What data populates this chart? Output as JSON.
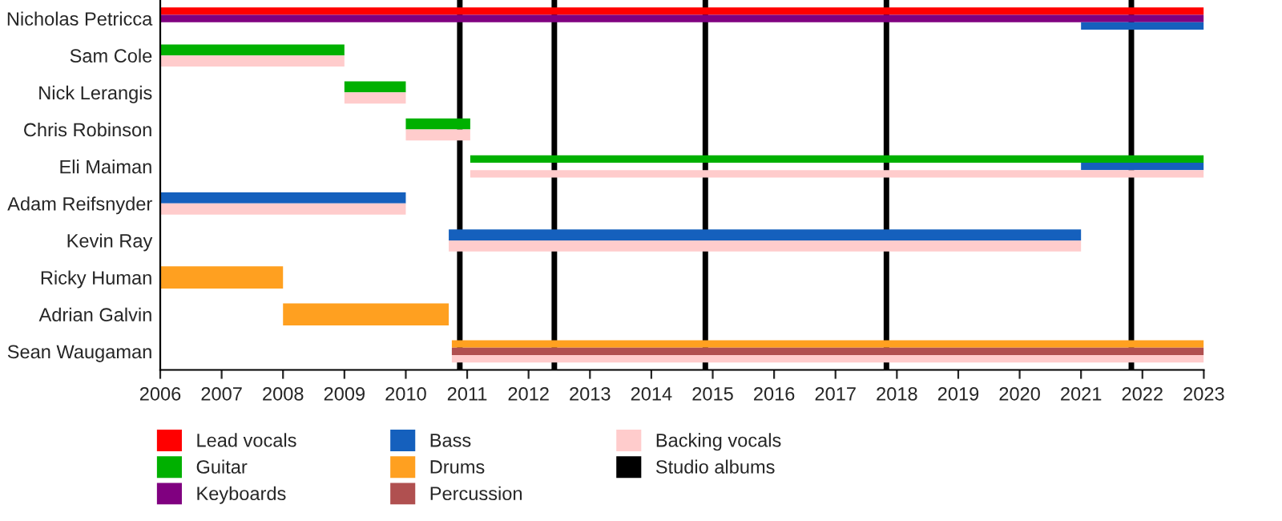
{
  "chart_data": {
    "type": "bar",
    "orientation": "horizontal",
    "categories": [
      "Nicholas Petricca",
      "Sam Cole",
      "Nick Lerangis",
      "Chris Robinson",
      "Eli Maiman",
      "Adam Reifsnyder",
      "Kevin Ray",
      "Ricky Human",
      "Adrian Galvin",
      "Sean Waugaman"
    ],
    "series": [
      {
        "name": "Lead vocals",
        "color": "#ff0000",
        "base": [
          2006,
          null,
          null,
          null,
          null,
          null,
          null,
          null,
          null,
          null
        ],
        "values": [
          17,
          null,
          null,
          null,
          null,
          null,
          null,
          null,
          null,
          null
        ]
      },
      {
        "name": "Guitar",
        "color": "#00b000",
        "base": [
          null,
          2006,
          2009,
          2010,
          2011.05,
          null,
          null,
          null,
          null,
          null
        ],
        "values": [
          null,
          3,
          1,
          1.05,
          11.95,
          null,
          null,
          null,
          null,
          null
        ]
      },
      {
        "name": "Keyboards",
        "color": "#800080",
        "base": [
          2006,
          null,
          null,
          null,
          null,
          null,
          null,
          null,
          null,
          null
        ],
        "values": [
          17,
          null,
          null,
          null,
          null,
          null,
          null,
          null,
          null,
          null
        ]
      },
      {
        "name": "Bass",
        "color": "#1560bd",
        "base": [
          2021,
          null,
          null,
          null,
          2021,
          2006,
          2010.7,
          null,
          null,
          null
        ],
        "values": [
          2,
          null,
          null,
          null,
          2,
          4,
          10.3,
          null,
          null,
          null
        ]
      },
      {
        "name": "Drums",
        "color": "#ffa020",
        "base": [
          null,
          null,
          null,
          null,
          null,
          null,
          null,
          2006,
          2008,
          2010.75
        ],
        "values": [
          null,
          null,
          null,
          null,
          null,
          null,
          null,
          2,
          2.7,
          12.25
        ]
      },
      {
        "name": "Percussion",
        "color": "#b05050",
        "base": [
          null,
          null,
          null,
          null,
          null,
          null,
          null,
          null,
          null,
          2010.75
        ],
        "values": [
          null,
          null,
          null,
          null,
          null,
          null,
          null,
          null,
          null,
          12.25
        ]
      },
      {
        "name": "Backing vocals",
        "color": "#ffcccc",
        "base": [
          null,
          2006,
          2009,
          2010,
          2011.05,
          2006,
          2010.7,
          null,
          null,
          2010.75
        ],
        "values": [
          null,
          3,
          1,
          1.05,
          11.95,
          4,
          10.3,
          null,
          null,
          12.25
        ]
      }
    ],
    "ref_lines": [
      {
        "axis": "x",
        "value": 2010.88,
        "label": "Studio albums",
        "color": "#000000"
      },
      {
        "axis": "x",
        "value": 2012.42,
        "color": "#000000"
      },
      {
        "axis": "x",
        "value": 2014.88,
        "color": "#000000"
      },
      {
        "axis": "x",
        "value": 2017.83,
        "color": "#000000"
      },
      {
        "axis": "x",
        "value": 2021.82,
        "color": "#000000"
      }
    ],
    "xlim": [
      2006,
      2023
    ],
    "xticks": [
      2006,
      2007,
      2008,
      2009,
      2010,
      2011,
      2012,
      2013,
      2014,
      2015,
      2016,
      2017,
      2018,
      2019,
      2020,
      2021,
      2022,
      2023
    ],
    "legend": "bottom",
    "grid": false
  }
}
